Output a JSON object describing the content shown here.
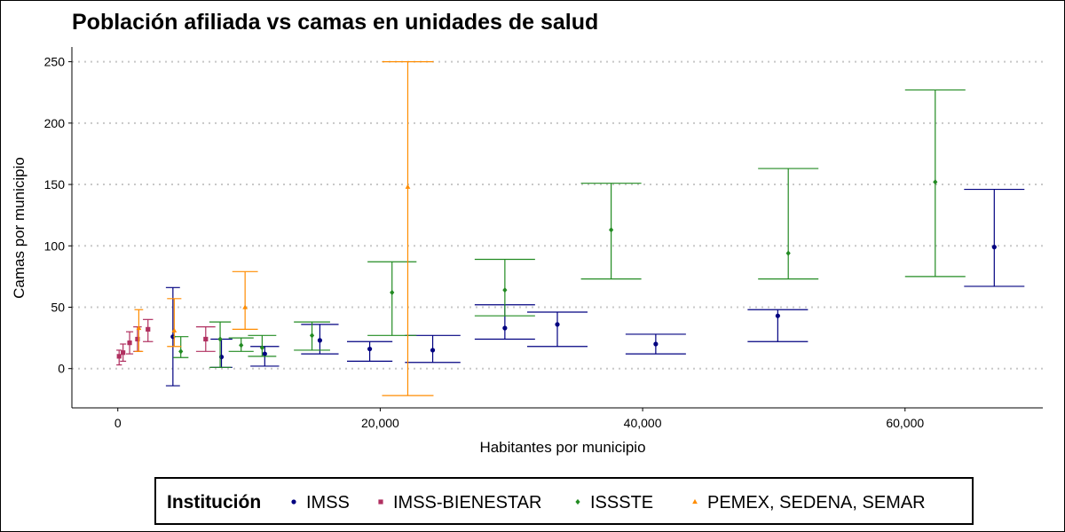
{
  "chart_data": {
    "type": "scatter",
    "title": "Población afiliada vs camas en unidades de salud",
    "xlabel": "Habitantes por municipio",
    "ylabel": "Camas por municipio",
    "xlim": [
      -3500,
      70500
    ],
    "ylim": [
      -32,
      262
    ],
    "x_ticks": [
      0,
      20000,
      40000,
      60000
    ],
    "x_tick_labels": [
      "0",
      "20,000",
      "40,000",
      "60,000"
    ],
    "y_ticks": [
      0,
      50,
      100,
      150,
      200,
      250
    ],
    "y_tick_labels": [
      "0",
      "50",
      "100",
      "150",
      "200",
      "250"
    ],
    "grid": "horizontal dotted",
    "legend": {
      "title": "Institución",
      "position": "bottom"
    },
    "series": [
      {
        "name": "IMSS",
        "color": "#000080",
        "marker": "circle",
        "points": [
          {
            "x": 4200,
            "y": 26,
            "ymin": -14,
            "ymax": 66
          },
          {
            "x": 7900,
            "y": 9.5,
            "ymin": 1,
            "ymax": 24
          },
          {
            "x": 11200,
            "y": 12,
            "ymin": 2,
            "ymax": 18
          },
          {
            "x": 15400,
            "y": 23,
            "ymin": 12,
            "ymax": 36
          },
          {
            "x": 19200,
            "y": 16,
            "ymin": 6,
            "ymax": 22
          },
          {
            "x": 24000,
            "y": 15,
            "ymin": 5,
            "ymax": 27
          },
          {
            "x": 29500,
            "y": 33,
            "ymin": 24,
            "ymax": 52
          },
          {
            "x": 33500,
            "y": 36,
            "ymin": 18,
            "ymax": 46
          },
          {
            "x": 41000,
            "y": 20,
            "ymin": 12,
            "ymax": 28
          },
          {
            "x": 50300,
            "y": 43,
            "ymin": 22,
            "ymax": 48
          },
          {
            "x": 66800,
            "y": 99,
            "ymin": 67,
            "ymax": 146
          }
        ]
      },
      {
        "name": "IMSS-BIENESTAR",
        "color": "#b03060",
        "marker": "square",
        "points": [
          {
            "x": 100,
            "y": 10,
            "ymin": 3,
            "ymax": 15
          },
          {
            "x": 400,
            "y": 13,
            "ymin": 6,
            "ymax": 20
          },
          {
            "x": 900,
            "y": 21,
            "ymin": 12,
            "ymax": 30
          },
          {
            "x": 1500,
            "y": 24,
            "ymin": 14,
            "ymax": 34
          },
          {
            "x": 2300,
            "y": 32,
            "ymin": 22,
            "ymax": 40
          },
          {
            "x": 6700,
            "y": 24,
            "ymin": 14,
            "ymax": 34
          }
        ]
      },
      {
        "name": "ISSSTE",
        "color": "#228b22",
        "marker": "diamond",
        "points": [
          {
            "x": 4800,
            "y": 14,
            "ymin": 9,
            "ymax": 26
          },
          {
            "x": 7800,
            "y": 24,
            "ymin": 1,
            "ymax": 38
          },
          {
            "x": 9400,
            "y": 19,
            "ymin": 14,
            "ymax": 25
          },
          {
            "x": 11000,
            "y": 17,
            "ymin": 10,
            "ymax": 27
          },
          {
            "x": 14800,
            "y": 27,
            "ymin": 15,
            "ymax": 38
          },
          {
            "x": 20900,
            "y": 62,
            "ymin": 27,
            "ymax": 87
          },
          {
            "x": 29500,
            "y": 64,
            "ymin": 43,
            "ymax": 89
          },
          {
            "x": 37600,
            "y": 113,
            "ymin": 73,
            "ymax": 151
          },
          {
            "x": 51100,
            "y": 94,
            "ymin": 73,
            "ymax": 163
          },
          {
            "x": 62300,
            "y": 152,
            "ymin": 75,
            "ymax": 227
          }
        ]
      },
      {
        "name": "PEMEX, SEDENA, SEMAR",
        "color": "#ff8c00",
        "marker": "triangle",
        "points": [
          {
            "x": 1600,
            "y": 33,
            "ymin": 14,
            "ymax": 48
          },
          {
            "x": 4300,
            "y": 31,
            "ymin": 18,
            "ymax": 57
          },
          {
            "x": 9700,
            "y": 50,
            "ymin": 32,
            "ymax": 79
          },
          {
            "x": 22100,
            "y": 148,
            "ymin": -22,
            "ymax": 250
          }
        ]
      }
    ]
  }
}
